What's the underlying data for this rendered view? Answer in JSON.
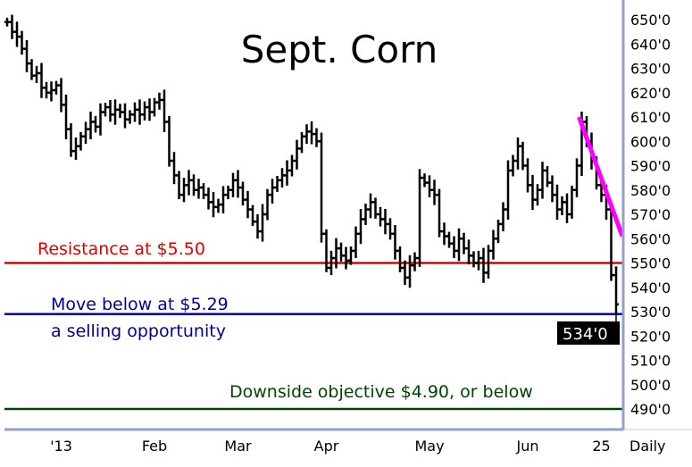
{
  "chart_data": {
    "type": "ohlc-bar",
    "title": "Sept. Corn",
    "xlabel": "Daily",
    "ylabel": "",
    "ylim": [
      485,
      655
    ],
    "yticks": [
      "490'0",
      "500'0",
      "510'0",
      "520'0",
      "530'0",
      "540'0",
      "550'0",
      "560'0",
      "570'0",
      "580'0",
      "590'0",
      "600'0",
      "610'0",
      "620'0",
      "630'0",
      "640'0",
      "650'0"
    ],
    "ytick_values": [
      490,
      500,
      510,
      520,
      530,
      540,
      550,
      560,
      570,
      580,
      590,
      600,
      610,
      620,
      630,
      640,
      650
    ],
    "xticks": [
      {
        "label": "'13",
        "bar": 11
      },
      {
        "label": "Feb",
        "bar": 30
      },
      {
        "label": "Mar",
        "bar": 47
      },
      {
        "label": "Apr",
        "bar": 65
      },
      {
        "label": "May",
        "bar": 86
      },
      {
        "label": "Jun",
        "bar": 106
      },
      {
        "label": "25",
        "bar": 121
      }
    ],
    "closes": [
      649,
      645,
      643,
      638,
      632,
      627,
      628,
      622,
      620,
      621,
      623,
      615,
      605,
      596,
      598,
      602,
      605,
      608,
      606,
      612,
      614,
      611,
      613,
      612,
      609,
      611,
      613,
      611,
      614,
      612,
      616,
      617,
      608,
      592,
      586,
      578,
      582,
      584,
      580,
      581,
      578,
      575,
      573,
      574,
      578,
      580,
      584,
      581,
      576,
      572,
      567,
      563,
      570,
      578,
      581,
      584,
      586,
      588,
      592,
      597,
      602,
      604,
      603,
      600,
      562,
      548,
      552,
      556,
      553,
      551,
      555,
      562,
      568,
      572,
      575,
      570,
      568,
      566,
      562,
      555,
      548,
      544,
      549,
      552,
      585,
      583,
      580,
      578,
      563,
      561,
      558,
      555,
      560,
      556,
      553,
      550,
      552,
      546,
      555,
      560,
      566,
      572,
      588,
      592,
      598,
      590,
      582,
      576,
      580,
      588,
      583,
      578,
      572,
      575,
      570,
      580,
      590,
      608,
      600,
      592,
      582,
      578,
      572,
      545,
      533
    ],
    "last_price": {
      "label": "534'0",
      "value": 534
    },
    "trendline": {
      "from_bar": 117,
      "from_value": 610,
      "to_value": 561,
      "color": "#ff00ff"
    },
    "levels": [
      {
        "value": 550,
        "label": "Resistance at $5.50",
        "color": "#e00000"
      },
      {
        "value": 529,
        "label": "Move below at $5.29",
        "label2": "a selling opportunity",
        "color": "#000099"
      },
      {
        "value": 490,
        "label": "Downside objective $4.90, or below",
        "color": "#004400"
      }
    ]
  }
}
